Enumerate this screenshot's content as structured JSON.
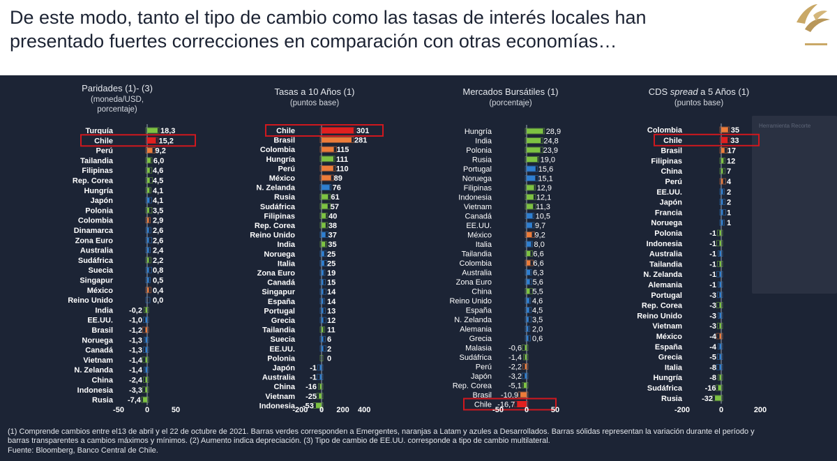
{
  "headline": "De este modo, tanto el tipo de cambio como las tasas de interés locales han\npresentado fuertes correcciones en comparación con otras economías…",
  "logo_icon": "swoosh-logo-icon",
  "colors": {
    "emerging": "#7dc242",
    "latam": "#ec7c3a",
    "developed": "#2f7fd0",
    "highlight": "#e02020",
    "highlight_box": "#d0181e",
    "background": "#1c2435"
  },
  "faded_overlay_label": "Herramienta Recorte",
  "footnote": {
    "line1": "(1) Comprende cambios entre el13 de abril y el 22 de octubre de 2021. Barras verdes corresponden a Emergentes, naranjas a Latam y azules a Desarrollados. Barras sólidas representan la variación durante el período y",
    "line2": "barras transparentes a cambios máximos y mínimos. (2) Aumento indica depreciación. (3) Tipo de cambio de EE.UU. corresponde a tipo de cambio multilateral.",
    "line3": "Fuente: Bloomberg, Banco Central de Chile."
  },
  "chart_data": [
    {
      "type": "bar",
      "orientation": "horizontal",
      "title": "Paridades (1)- (3)",
      "subtitle": [
        "(moneda/USD,",
        "porcentaje)"
      ],
      "xlim": [
        -50,
        50
      ],
      "xticks": [
        -50,
        0,
        50
      ],
      "xtick_labels": [
        "-50",
        "0",
        "50"
      ],
      "highlight": [
        "Chile"
      ],
      "categories": [
        "Turquía",
        "Chile",
        "Perú",
        "Tailandia",
        "Filipinas",
        "Rep. Corea",
        "Hungría",
        "Japón",
        "Polonia",
        "Colombia",
        "Dinamarca",
        "Zona Euro",
        "Australia",
        "Sudáfrica",
        "Suecia",
        "Singapur",
        "México",
        "Reino Unido",
        "India",
        "EE.UU.",
        "Brasil",
        "Noruega",
        "Canadá",
        "Vietnam",
        "N. Zelanda",
        "China",
        "Indonesia",
        "Rusia"
      ],
      "values": [
        18.3,
        15.2,
        9.2,
        6.0,
        4.6,
        4.5,
        4.1,
        4.1,
        3.5,
        2.9,
        2.6,
        2.6,
        2.4,
        2.2,
        0.8,
        0.5,
        0.4,
        0.0,
        -0.2,
        -1.0,
        -1.2,
        -1.3,
        -1.3,
        -1.4,
        -1.4,
        -2.4,
        -3.3,
        -7.4
      ],
      "value_labels": [
        "18,3",
        "15,2",
        "9,2",
        "6,0",
        "4,6",
        "4,5",
        "4,1",
        "4,1",
        "3,5",
        "2,9",
        "2,6",
        "2,6",
        "2,4",
        "2,2",
        "0,8",
        "0,5",
        "0,4",
        "0,0",
        "-0,2",
        "-1,0",
        "-1,2",
        "-1,3",
        "-1,3",
        "-1,4",
        "-1,4",
        "-2,4",
        "-3,3",
        "-7,4"
      ],
      "groups": [
        "E",
        "L",
        "L",
        "E",
        "E",
        "E",
        "E",
        "D",
        "E",
        "L",
        "D",
        "D",
        "D",
        "E",
        "D",
        "D",
        "L",
        "D",
        "E",
        "D",
        "L",
        "D",
        "D",
        "E",
        "D",
        "E",
        "E",
        "E"
      ]
    },
    {
      "type": "bar",
      "orientation": "horizontal",
      "title": "Tasas a 10 Años (1)",
      "subtitle": [
        "(puntos base)"
      ],
      "xlim": [
        -200,
        400
      ],
      "xticks": [
        -200,
        0,
        200,
        400
      ],
      "xtick_labels": [
        "-200",
        "0",
        "200",
        "400"
      ],
      "highlight": [
        "Chile"
      ],
      "categories": [
        "Chile",
        "Brasil",
        "Colombia",
        "Hungría",
        "Perú",
        "México",
        "N. Zelanda",
        "Rusia",
        "Sudáfrica",
        "Filipinas",
        "Rep. Corea",
        "Reino Unido",
        "India",
        "Noruega",
        "Italia",
        "Zona Euro",
        "Canadá",
        "Singapur",
        "España",
        "Portugal",
        "Grecia",
        "Tailandia",
        "Suecia",
        "EE.UU.",
        "Polonia",
        "Japón",
        "Australia",
        "China",
        "Vietnam",
        "Indonesia"
      ],
      "values": [
        301,
        281,
        115,
        111,
        110,
        89,
        76,
        61,
        57,
        40,
        38,
        37,
        35,
        25,
        25,
        19,
        15,
        14,
        14,
        13,
        12,
        11,
        6,
        2,
        0,
        -1,
        -1,
        -16,
        -25,
        -53
      ],
      "value_labels": [
        "301",
        "281",
        "115",
        "111",
        "110",
        "89",
        "76",
        "61",
        "57",
        "40",
        "38",
        "37",
        "35",
        "25",
        "25",
        "19",
        "15",
        "14",
        "14",
        "13",
        "12",
        "11",
        "6",
        "2",
        "0",
        "-1",
        "-1",
        "-16",
        "-25",
        "-53"
      ],
      "groups": [
        "L",
        "L",
        "L",
        "E",
        "L",
        "L",
        "D",
        "E",
        "E",
        "E",
        "E",
        "D",
        "E",
        "D",
        "D",
        "D",
        "D",
        "D",
        "D",
        "D",
        "D",
        "E",
        "D",
        "D",
        "E",
        "D",
        "D",
        "E",
        "E",
        "E"
      ]
    },
    {
      "type": "bar",
      "orientation": "horizontal",
      "title": "Mercados Bursátiles (1)",
      "subtitle": [
        "(porcentaje)"
      ],
      "xlim": [
        -50,
        50
      ],
      "xticks": [
        -50,
        0,
        50
      ],
      "xtick_labels": [
        "-50",
        "0",
        "50"
      ],
      "highlight": [
        "Chile"
      ],
      "categories": [
        "Hungría",
        "India",
        "Polonia",
        "Rusia",
        "Portugal",
        "Noruega",
        "Filipinas",
        "Indonesia",
        "Vietnam",
        "Canadá",
        "EE.UU.",
        "México",
        "Italia",
        "Tailandia",
        "Colombia",
        "Australia",
        "Zona Euro",
        "China",
        "Reino Unido",
        "España",
        "N. Zelanda",
        "Alemania",
        "Grecia",
        "Malasia",
        "Sudáfrica",
        "Perú",
        "Japón",
        "Rep. Corea",
        "Brasil",
        "Chile"
      ],
      "values": [
        28.9,
        24.8,
        23.9,
        19.0,
        15.6,
        15.1,
        12.9,
        12.1,
        11.3,
        10.5,
        9.7,
        9.2,
        8.0,
        6.6,
        6.6,
        6.3,
        5.6,
        5.5,
        4.6,
        4.5,
        3.5,
        2.0,
        0.6,
        -0.6,
        -1.4,
        -2.2,
        -3.2,
        -5.1,
        -10.9,
        -16.7
      ],
      "value_labels": [
        "28,9",
        "24,8",
        "23,9",
        "19,0",
        "15,6",
        "15,1",
        "12,9",
        "12,1",
        "11,3",
        "10,5",
        "9,7",
        "9,2",
        "8,0",
        "6,6",
        "6,6",
        "6,3",
        "5,6",
        "5,5",
        "4,6",
        "4,5",
        "3,5",
        "2,0",
        "0,6",
        "-0,6",
        "-1,4",
        "-2,2",
        "-3,2",
        "-5,1",
        "-10,9",
        "-16,7"
      ],
      "groups": [
        "E",
        "E",
        "E",
        "E",
        "D",
        "D",
        "E",
        "E",
        "E",
        "D",
        "D",
        "L",
        "D",
        "E",
        "L",
        "D",
        "D",
        "E",
        "D",
        "D",
        "D",
        "D",
        "D",
        "E",
        "E",
        "L",
        "D",
        "E",
        "L",
        "L"
      ]
    },
    {
      "type": "bar",
      "orientation": "horizontal",
      "title_parts": [
        "CDS ",
        "spread",
        " a 5 Años (1)"
      ],
      "subtitle": [
        "(puntos base)"
      ],
      "xlim": [
        -200,
        200
      ],
      "xticks": [
        -200,
        0,
        200
      ],
      "xtick_labels": [
        "-200",
        "0",
        "200"
      ],
      "highlight": [
        "Chile"
      ],
      "categories": [
        "Colombia",
        "Chile",
        "Brasil",
        "Filipinas",
        "China",
        "Perú",
        "EE.UU.",
        "Japón",
        "Francia",
        "Noruega",
        "Polonia",
        "Indonesia",
        "Australia",
        "Tailandia",
        "N. Zelanda",
        "Alemania",
        "Portugal",
        "Rep. Corea",
        "Reino Unido",
        "Vietnam",
        "México",
        "España",
        "Grecia",
        "Italia",
        "Hungría",
        "Sudáfrica",
        "Rusia"
      ],
      "values": [
        35,
        33,
        17,
        12,
        7,
        4,
        2,
        2,
        1,
        1,
        -1,
        -1,
        -1,
        -1,
        -1,
        -1,
        -3,
        -3,
        -3,
        -3,
        -4,
        -4,
        -5,
        -8,
        -8,
        -16,
        -32
      ],
      "value_labels": [
        "35",
        "33",
        "17",
        "12",
        "7",
        "4",
        "2",
        "2",
        "1",
        "1",
        "-1",
        "-1",
        "-1",
        "-1",
        "-1",
        "-1",
        "-3",
        "-3",
        "-3",
        "-3",
        "-4",
        "-4",
        "-5",
        "-8",
        "-8",
        "-16",
        "-32"
      ],
      "groups": [
        "L",
        "L",
        "L",
        "E",
        "E",
        "L",
        "D",
        "D",
        "D",
        "D",
        "E",
        "E",
        "D",
        "E",
        "D",
        "D",
        "D",
        "E",
        "D",
        "E",
        "L",
        "D",
        "D",
        "D",
        "E",
        "E",
        "E"
      ]
    }
  ]
}
